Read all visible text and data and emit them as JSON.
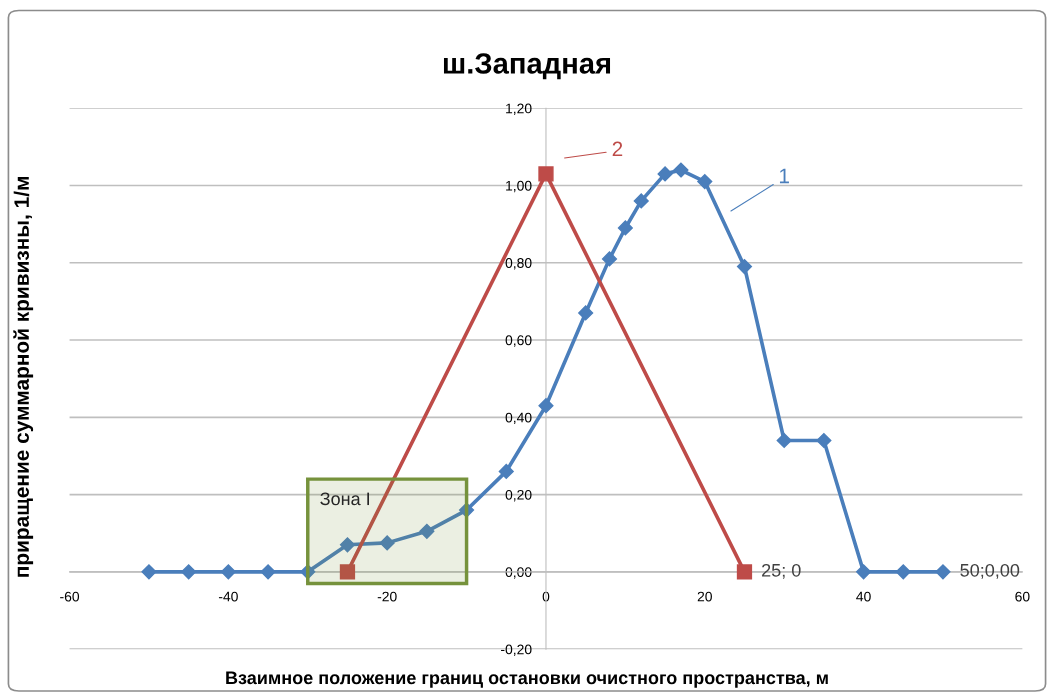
{
  "chart_data": {
    "type": "line",
    "title": "ш.Западная",
    "xlabel": "Взаимное положение границ остановки очистного пространства, м",
    "ylabel": "приращение суммарной кривизны, 1/м",
    "series": [
      {
        "name": "1",
        "color": "#4a7ebb",
        "marker": "diamond",
        "x": [
          -50,
          -45,
          -40,
          -35,
          -30,
          -25,
          -20,
          -15,
          -10,
          -5,
          0,
          5,
          8,
          10,
          12,
          15,
          17,
          20,
          25,
          30,
          35,
          40,
          45,
          50
        ],
        "values": [
          0,
          0,
          0,
          0,
          0,
          0.07,
          0.075,
          0.105,
          0.16,
          0.26,
          0.43,
          0.67,
          0.81,
          0.89,
          0.96,
          1.03,
          1.04,
          1.01,
          0.79,
          0.34,
          0.34,
          0,
          0,
          0
        ]
      },
      {
        "name": "2",
        "color": "#be4b48",
        "marker": "square",
        "x": [
          -25,
          0,
          25
        ],
        "values": [
          0,
          1.03,
          0
        ]
      }
    ],
    "xlim": [
      -60,
      60
    ],
    "xticks": [
      -60,
      -40,
      -20,
      0,
      20,
      40,
      60
    ],
    "ylim": [
      -0.2,
      1.2
    ],
    "yticks": [
      {
        "value": -0.2,
        "label": "-0,20"
      },
      {
        "value": 0,
        "label": "0,00"
      },
      {
        "value": 0.2,
        "label": "0,20"
      },
      {
        "value": 0.4,
        "label": "0,40"
      },
      {
        "value": 0.6,
        "label": "0,60"
      },
      {
        "value": 0.8,
        "label": "0,80"
      },
      {
        "value": 1.0,
        "label": "1,00"
      },
      {
        "value": 1.2,
        "label": "1,20"
      }
    ],
    "grid": "y",
    "line_style": "solid",
    "bands": [
      {
        "axis": "x",
        "from": -30,
        "to": -10,
        "label": "Зона I",
        "color": "#76923c"
      }
    ],
    "annotations": [
      {
        "text": "25; 0",
        "x": 25,
        "y": 0
      },
      {
        "text": "50;0,00",
        "x": 50,
        "y": 0
      }
    ]
  }
}
